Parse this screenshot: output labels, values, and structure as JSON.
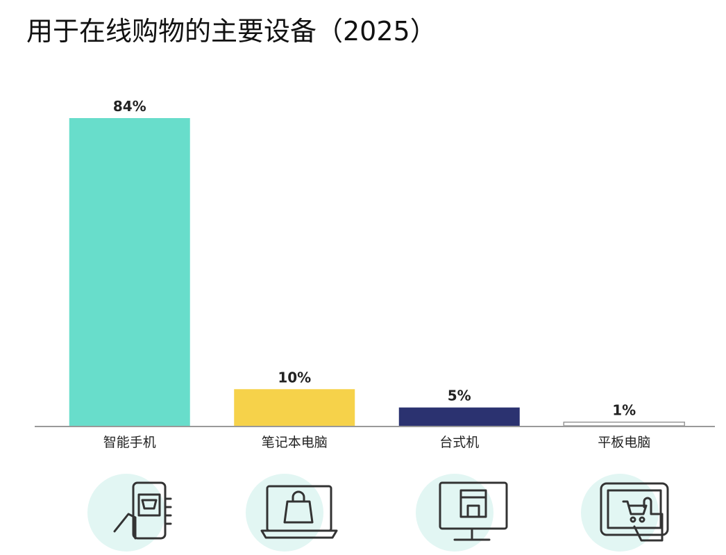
{
  "chart_data": {
    "type": "bar",
    "title": "用于在线购物的主要设备（2025）",
    "categories": [
      "智能手机",
      "笔记本电脑",
      "台式机",
      "平板电脑"
    ],
    "values": [
      84,
      10,
      5,
      1
    ],
    "value_labels": [
      "84%",
      "10%",
      "5%",
      "1%"
    ],
    "colors": [
      "#68ddcb",
      "#f6d24a",
      "#2b3270",
      "#ffffff"
    ]
  }
}
